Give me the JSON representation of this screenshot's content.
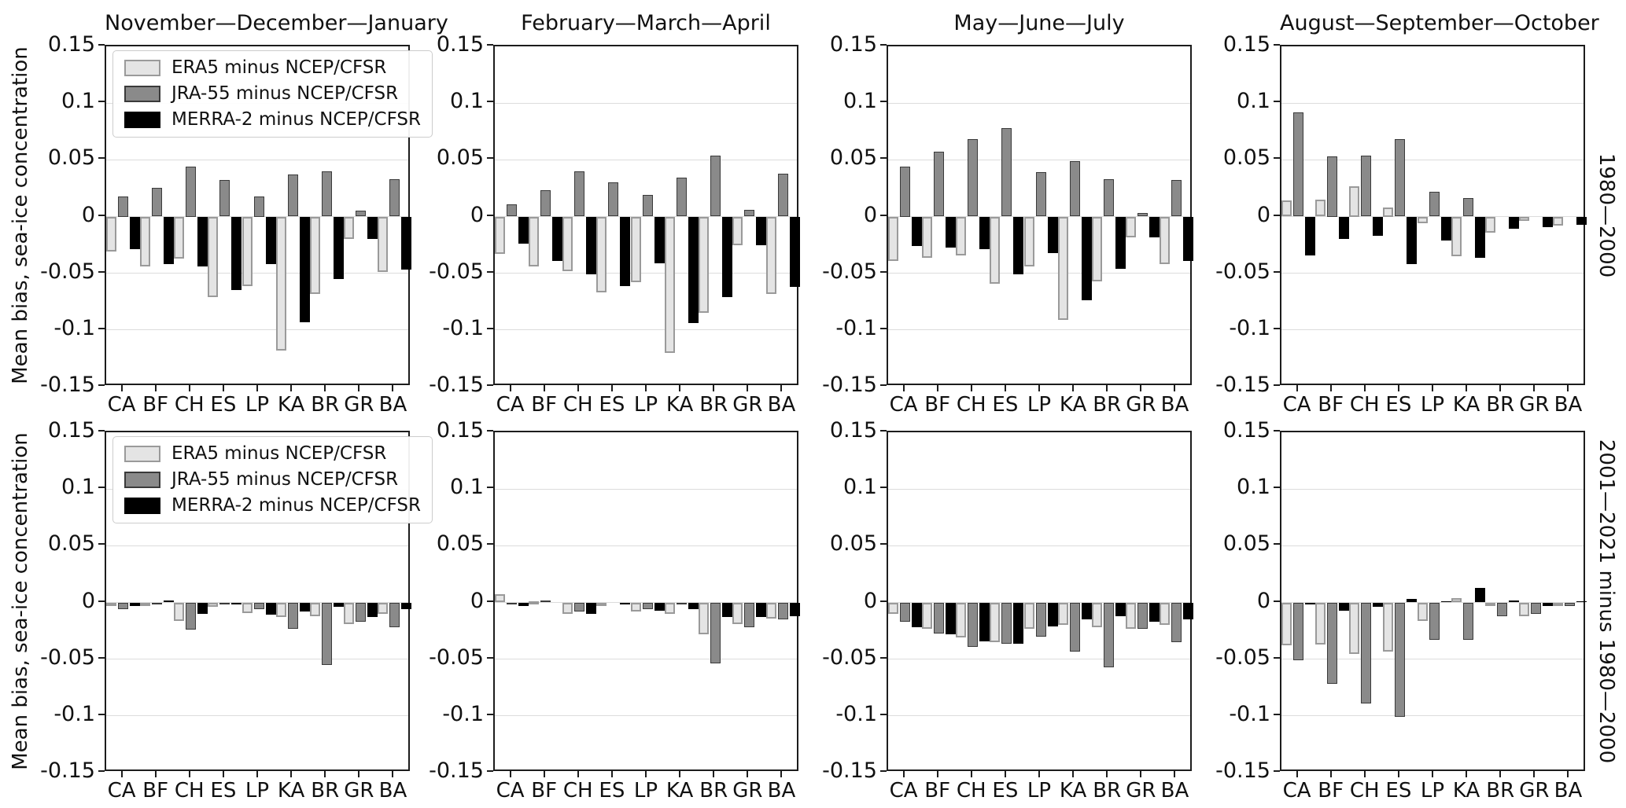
{
  "figure": {
    "ylabel": "Mean bias, sea-ice concentration",
    "col_titles": [
      "November—December—January",
      "February—March—April",
      "May—June—July",
      "August—September—October"
    ],
    "row_labels": [
      "1980—2000",
      "2001—2021 minus 1980—2000"
    ],
    "categories": [
      "CA",
      "BF",
      "CH",
      "ES",
      "LP",
      "KA",
      "BR",
      "GR",
      "BA"
    ],
    "ytick_labels": [
      "0.15",
      "0.1",
      "0.05",
      "0",
      "-0.05",
      "-0.1",
      "-0.15"
    ],
    "yticks": [
      0.15,
      0.1,
      0.05,
      0,
      -0.05,
      -0.1,
      -0.15
    ],
    "ylim": [
      -0.15,
      0.15
    ],
    "grid": true,
    "legend_position": "upper left",
    "legend": [
      {
        "label": "ERA5 minus NCEP/CFSR",
        "key": "era5",
        "fill": "#e4e4e4",
        "edge": "#9a9a9a"
      },
      {
        "label": "JRA-55 minus NCEP/CFSR",
        "key": "jra55",
        "fill": "#8a8a8a",
        "edge": "#3a3a3a"
      },
      {
        "label": "MERRA-2 minus NCEP/CFSR",
        "key": "merra2",
        "fill": "#000000",
        "edge": "#000000"
      }
    ],
    "colors": {
      "axis": "#1c1c1c",
      "grid": "#dcdcdc",
      "background": "#ffffff",
      "text": "#111111"
    }
  },
  "chart_data": [
    {
      "type": "bar",
      "row": 0,
      "col": 0,
      "title": "November—December—January",
      "period": "1980—2000",
      "categories": [
        "CA",
        "BF",
        "CH",
        "ES",
        "LP",
        "KA",
        "BR",
        "GR",
        "BA"
      ],
      "ylim": [
        -0.15,
        0.15
      ],
      "legend_visible": true,
      "series": [
        {
          "name": "ERA5 minus NCEP/CFSR",
          "values": [
            -0.031,
            -0.044,
            -0.037,
            -0.071,
            -0.061,
            -0.118,
            -0.068,
            -0.02,
            -0.049
          ]
        },
        {
          "name": "JRA-55 minus NCEP/CFSR",
          "values": [
            0.018,
            0.025,
            0.044,
            0.032,
            0.018,
            0.037,
            0.04,
            0.005,
            0.033
          ]
        },
        {
          "name": "MERRA-2 minus NCEP/CFSR",
          "values": [
            -0.029,
            -0.042,
            -0.044,
            -0.065,
            -0.042,
            -0.093,
            -0.055,
            -0.02,
            -0.047
          ]
        }
      ]
    },
    {
      "type": "bar",
      "row": 0,
      "col": 1,
      "title": "February—March—April",
      "period": "1980—2000",
      "categories": [
        "CA",
        "BF",
        "CH",
        "ES",
        "LP",
        "KA",
        "BR",
        "GR",
        "BA"
      ],
      "ylim": [
        -0.15,
        0.15
      ],
      "legend_visible": false,
      "series": [
        {
          "name": "ERA5 minus NCEP/CFSR",
          "values": [
            -0.033,
            -0.044,
            -0.048,
            -0.067,
            -0.058,
            -0.12,
            -0.085,
            -0.025,
            -0.068
          ]
        },
        {
          "name": "JRA-55 minus NCEP/CFSR",
          "values": [
            0.011,
            0.023,
            0.04,
            0.03,
            0.019,
            0.034,
            0.054,
            0.006,
            0.038
          ]
        },
        {
          "name": "MERRA-2 minus NCEP/CFSR",
          "values": [
            -0.024,
            -0.039,
            -0.051,
            -0.061,
            -0.041,
            -0.094,
            -0.071,
            -0.025,
            -0.062
          ]
        }
      ]
    },
    {
      "type": "bar",
      "row": 0,
      "col": 2,
      "title": "May—June—July",
      "period": "1980—2000",
      "categories": [
        "CA",
        "BF",
        "CH",
        "ES",
        "LP",
        "KA",
        "BR",
        "GR",
        "BA"
      ],
      "ylim": [
        -0.15,
        0.15
      ],
      "legend_visible": false,
      "series": [
        {
          "name": "ERA5 minus NCEP/CFSR",
          "values": [
            -0.039,
            -0.036,
            -0.034,
            -0.059,
            -0.044,
            -0.091,
            -0.057,
            -0.018,
            -0.042
          ]
        },
        {
          "name": "JRA-55 minus NCEP/CFSR",
          "values": [
            0.044,
            0.057,
            0.068,
            0.078,
            0.039,
            0.049,
            0.033,
            0.003,
            0.032
          ]
        },
        {
          "name": "MERRA-2 minus NCEP/CFSR",
          "values": [
            -0.026,
            -0.027,
            -0.029,
            -0.051,
            -0.032,
            -0.074,
            -0.046,
            -0.018,
            -0.039
          ]
        }
      ]
    },
    {
      "type": "bar",
      "row": 0,
      "col": 3,
      "title": "August—September—October",
      "period": "1980—2000",
      "categories": [
        "CA",
        "BF",
        "CH",
        "ES",
        "LP",
        "KA",
        "BR",
        "GR",
        "BA"
      ],
      "ylim": [
        -0.15,
        0.15
      ],
      "legend_visible": false,
      "series": [
        {
          "name": "ERA5 minus NCEP/CFSR",
          "values": [
            0.014,
            0.015,
            0.027,
            0.008,
            -0.006,
            -0.035,
            -0.014,
            -0.004,
            -0.008
          ]
        },
        {
          "name": "JRA-55 minus NCEP/CFSR",
          "values": [
            0.092,
            0.053,
            0.054,
            0.068,
            0.022,
            0.016,
            0.0,
            0.0,
            0.0
          ]
        },
        {
          "name": "MERRA-2 minus NCEP/CFSR",
          "values": [
            -0.034,
            -0.02,
            -0.017,
            -0.042,
            -0.021,
            -0.036,
            -0.011,
            -0.009,
            -0.007
          ]
        }
      ]
    },
    {
      "type": "bar",
      "row": 1,
      "col": 0,
      "title": "November—December—January",
      "period": "2001—2021 minus 1980—2000",
      "categories": [
        "CA",
        "BF",
        "CH",
        "ES",
        "LP",
        "KA",
        "BR",
        "GR",
        "BA"
      ],
      "ylim": [
        -0.15,
        0.15
      ],
      "legend_visible": true,
      "series": [
        {
          "name": "ERA5 minus NCEP/CFSR",
          "values": [
            -0.002,
            -0.001,
            -0.016,
            -0.004,
            -0.009,
            -0.013,
            -0.012,
            -0.019,
            -0.01
          ]
        },
        {
          "name": "JRA-55 minus NCEP/CFSR",
          "values": [
            -0.006,
            -0.001,
            -0.024,
            -0.002,
            -0.006,
            -0.023,
            -0.055,
            -0.017,
            -0.022
          ]
        },
        {
          "name": "MERRA-2 minus NCEP/CFSR",
          "values": [
            -0.003,
            0.002,
            -0.01,
            -0.002,
            -0.011,
            -0.008,
            -0.004,
            -0.013,
            -0.006
          ]
        }
      ]
    },
    {
      "type": "bar",
      "row": 1,
      "col": 1,
      "title": "February—March—April",
      "period": "2001—2021 minus 1980—2000",
      "categories": [
        "CA",
        "BF",
        "CH",
        "ES",
        "LP",
        "KA",
        "BR",
        "GR",
        "BA"
      ],
      "ylim": [
        -0.15,
        0.15
      ],
      "legend_visible": false,
      "series": [
        {
          "name": "ERA5 minus NCEP/CFSR",
          "values": [
            0.007,
            0.001,
            -0.01,
            -0.002,
            -0.008,
            -0.01,
            -0.028,
            -0.019,
            -0.014
          ]
        },
        {
          "name": "JRA-55 minus NCEP/CFSR",
          "values": [
            -0.001,
            0.002,
            -0.008,
            0.0,
            -0.006,
            -0.001,
            -0.054,
            -0.022,
            -0.015
          ]
        },
        {
          "name": "MERRA-2 minus NCEP/CFSR",
          "values": [
            -0.003,
            0.0,
            -0.01,
            -0.002,
            -0.007,
            -0.006,
            -0.013,
            -0.013,
            -0.012
          ]
        }
      ]
    },
    {
      "type": "bar",
      "row": 1,
      "col": 2,
      "title": "May—June—July",
      "period": "2001—2021 minus 1980—2000",
      "categories": [
        "CA",
        "BF",
        "CH",
        "ES",
        "LP",
        "KA",
        "BR",
        "GR",
        "BA"
      ],
      "ylim": [
        -0.15,
        0.15
      ],
      "legend_visible": false,
      "series": [
        {
          "name": "ERA5 minus NCEP/CFSR",
          "values": [
            -0.01,
            -0.023,
            -0.031,
            -0.035,
            -0.023,
            -0.02,
            -0.022,
            -0.023,
            -0.02
          ]
        },
        {
          "name": "JRA-55 minus NCEP/CFSR",
          "values": [
            -0.017,
            -0.027,
            -0.039,
            -0.036,
            -0.03,
            -0.043,
            -0.057,
            -0.023,
            -0.035
          ]
        },
        {
          "name": "MERRA-2 minus NCEP/CFSR",
          "values": [
            -0.022,
            -0.028,
            -0.034,
            -0.036,
            -0.021,
            -0.015,
            -0.012,
            -0.017,
            -0.015
          ]
        }
      ]
    },
    {
      "type": "bar",
      "row": 1,
      "col": 3,
      "title": "August—September—October",
      "period": "2001—2021 minus 1980—2000",
      "categories": [
        "CA",
        "BF",
        "CH",
        "ES",
        "LP",
        "KA",
        "BR",
        "GR",
        "BA"
      ],
      "ylim": [
        -0.15,
        0.15
      ],
      "legend_visible": false,
      "series": [
        {
          "name": "ERA5 minus NCEP/CFSR",
          "values": [
            -0.038,
            -0.037,
            -0.045,
            -0.043,
            -0.016,
            0.004,
            -0.002,
            -0.012,
            -0.002
          ]
        },
        {
          "name": "JRA-55 minus NCEP/CFSR",
          "values": [
            -0.051,
            -0.072,
            -0.089,
            -0.101,
            -0.033,
            -0.033,
            -0.012,
            -0.01,
            -0.003
          ]
        },
        {
          "name": "MERRA-2 minus NCEP/CFSR",
          "values": [
            -0.002,
            -0.007,
            -0.004,
            0.003,
            0.001,
            0.013,
            0.002,
            -0.003,
            0.001
          ]
        }
      ]
    }
  ]
}
